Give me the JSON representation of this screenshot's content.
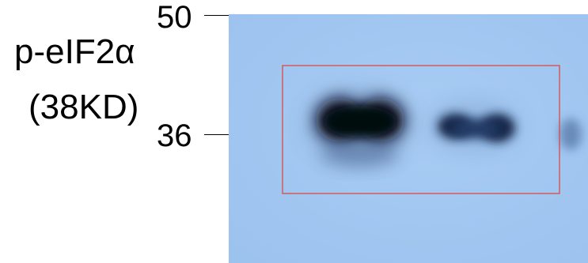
{
  "labels": {
    "protein_name": "p-eIF2α",
    "protein_size": "(38KD)"
  },
  "markers": [
    {
      "label": "50"
    },
    {
      "label": "36"
    }
  ],
  "colors": {
    "membrane": "#a3c8f2",
    "band": "#0a1020",
    "highlight_box": "#e0403a",
    "marker_line": "#1a2a40"
  },
  "bands": [
    {
      "lane": 1,
      "intensity": 1.0
    },
    {
      "lane": 2,
      "intensity": 0.65
    },
    {
      "lane": 3,
      "intensity": 0.15
    }
  ]
}
